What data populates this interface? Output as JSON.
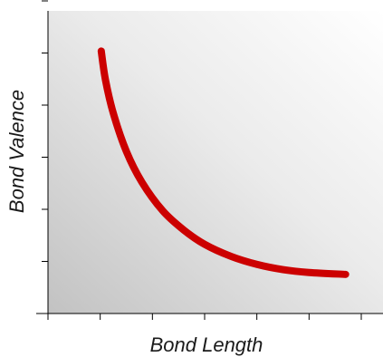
{
  "chart_data": {
    "type": "line",
    "xlabel": "Bond Length",
    "ylabel": "Bond Valence",
    "xlim": [
      0,
      6
    ],
    "ylim": [
      0,
      6
    ],
    "x_ticks": [
      0,
      1,
      2,
      3,
      4,
      5,
      6
    ],
    "y_ticks": [
      0,
      1,
      2,
      3,
      4,
      5,
      6
    ],
    "tick_labels_shown": false,
    "grid": false,
    "background": "gradient-dark-bottom-left-to-white-top-right",
    "series": [
      {
        "color": "#cc0000",
        "points": [
          {
            "x": 1.02,
            "y": 5.5
          },
          {
            "x": 1.1,
            "y": 4.9
          },
          {
            "x": 1.25,
            "y": 4.2
          },
          {
            "x": 1.5,
            "y": 3.4
          },
          {
            "x": 1.8,
            "y": 2.75
          },
          {
            "x": 2.2,
            "y": 2.15
          },
          {
            "x": 2.6,
            "y": 1.75
          },
          {
            "x": 3.0,
            "y": 1.45
          },
          {
            "x": 3.5,
            "y": 1.2
          },
          {
            "x": 4.0,
            "y": 1.03
          },
          {
            "x": 4.5,
            "y": 0.92
          },
          {
            "x": 5.0,
            "y": 0.86
          },
          {
            "x": 5.7,
            "y": 0.82
          }
        ]
      }
    ]
  },
  "colors": {
    "curve": "#cc0000",
    "axis": "#000000",
    "bg_dark": "#c2c2c2",
    "bg_light": "#ffffff"
  }
}
